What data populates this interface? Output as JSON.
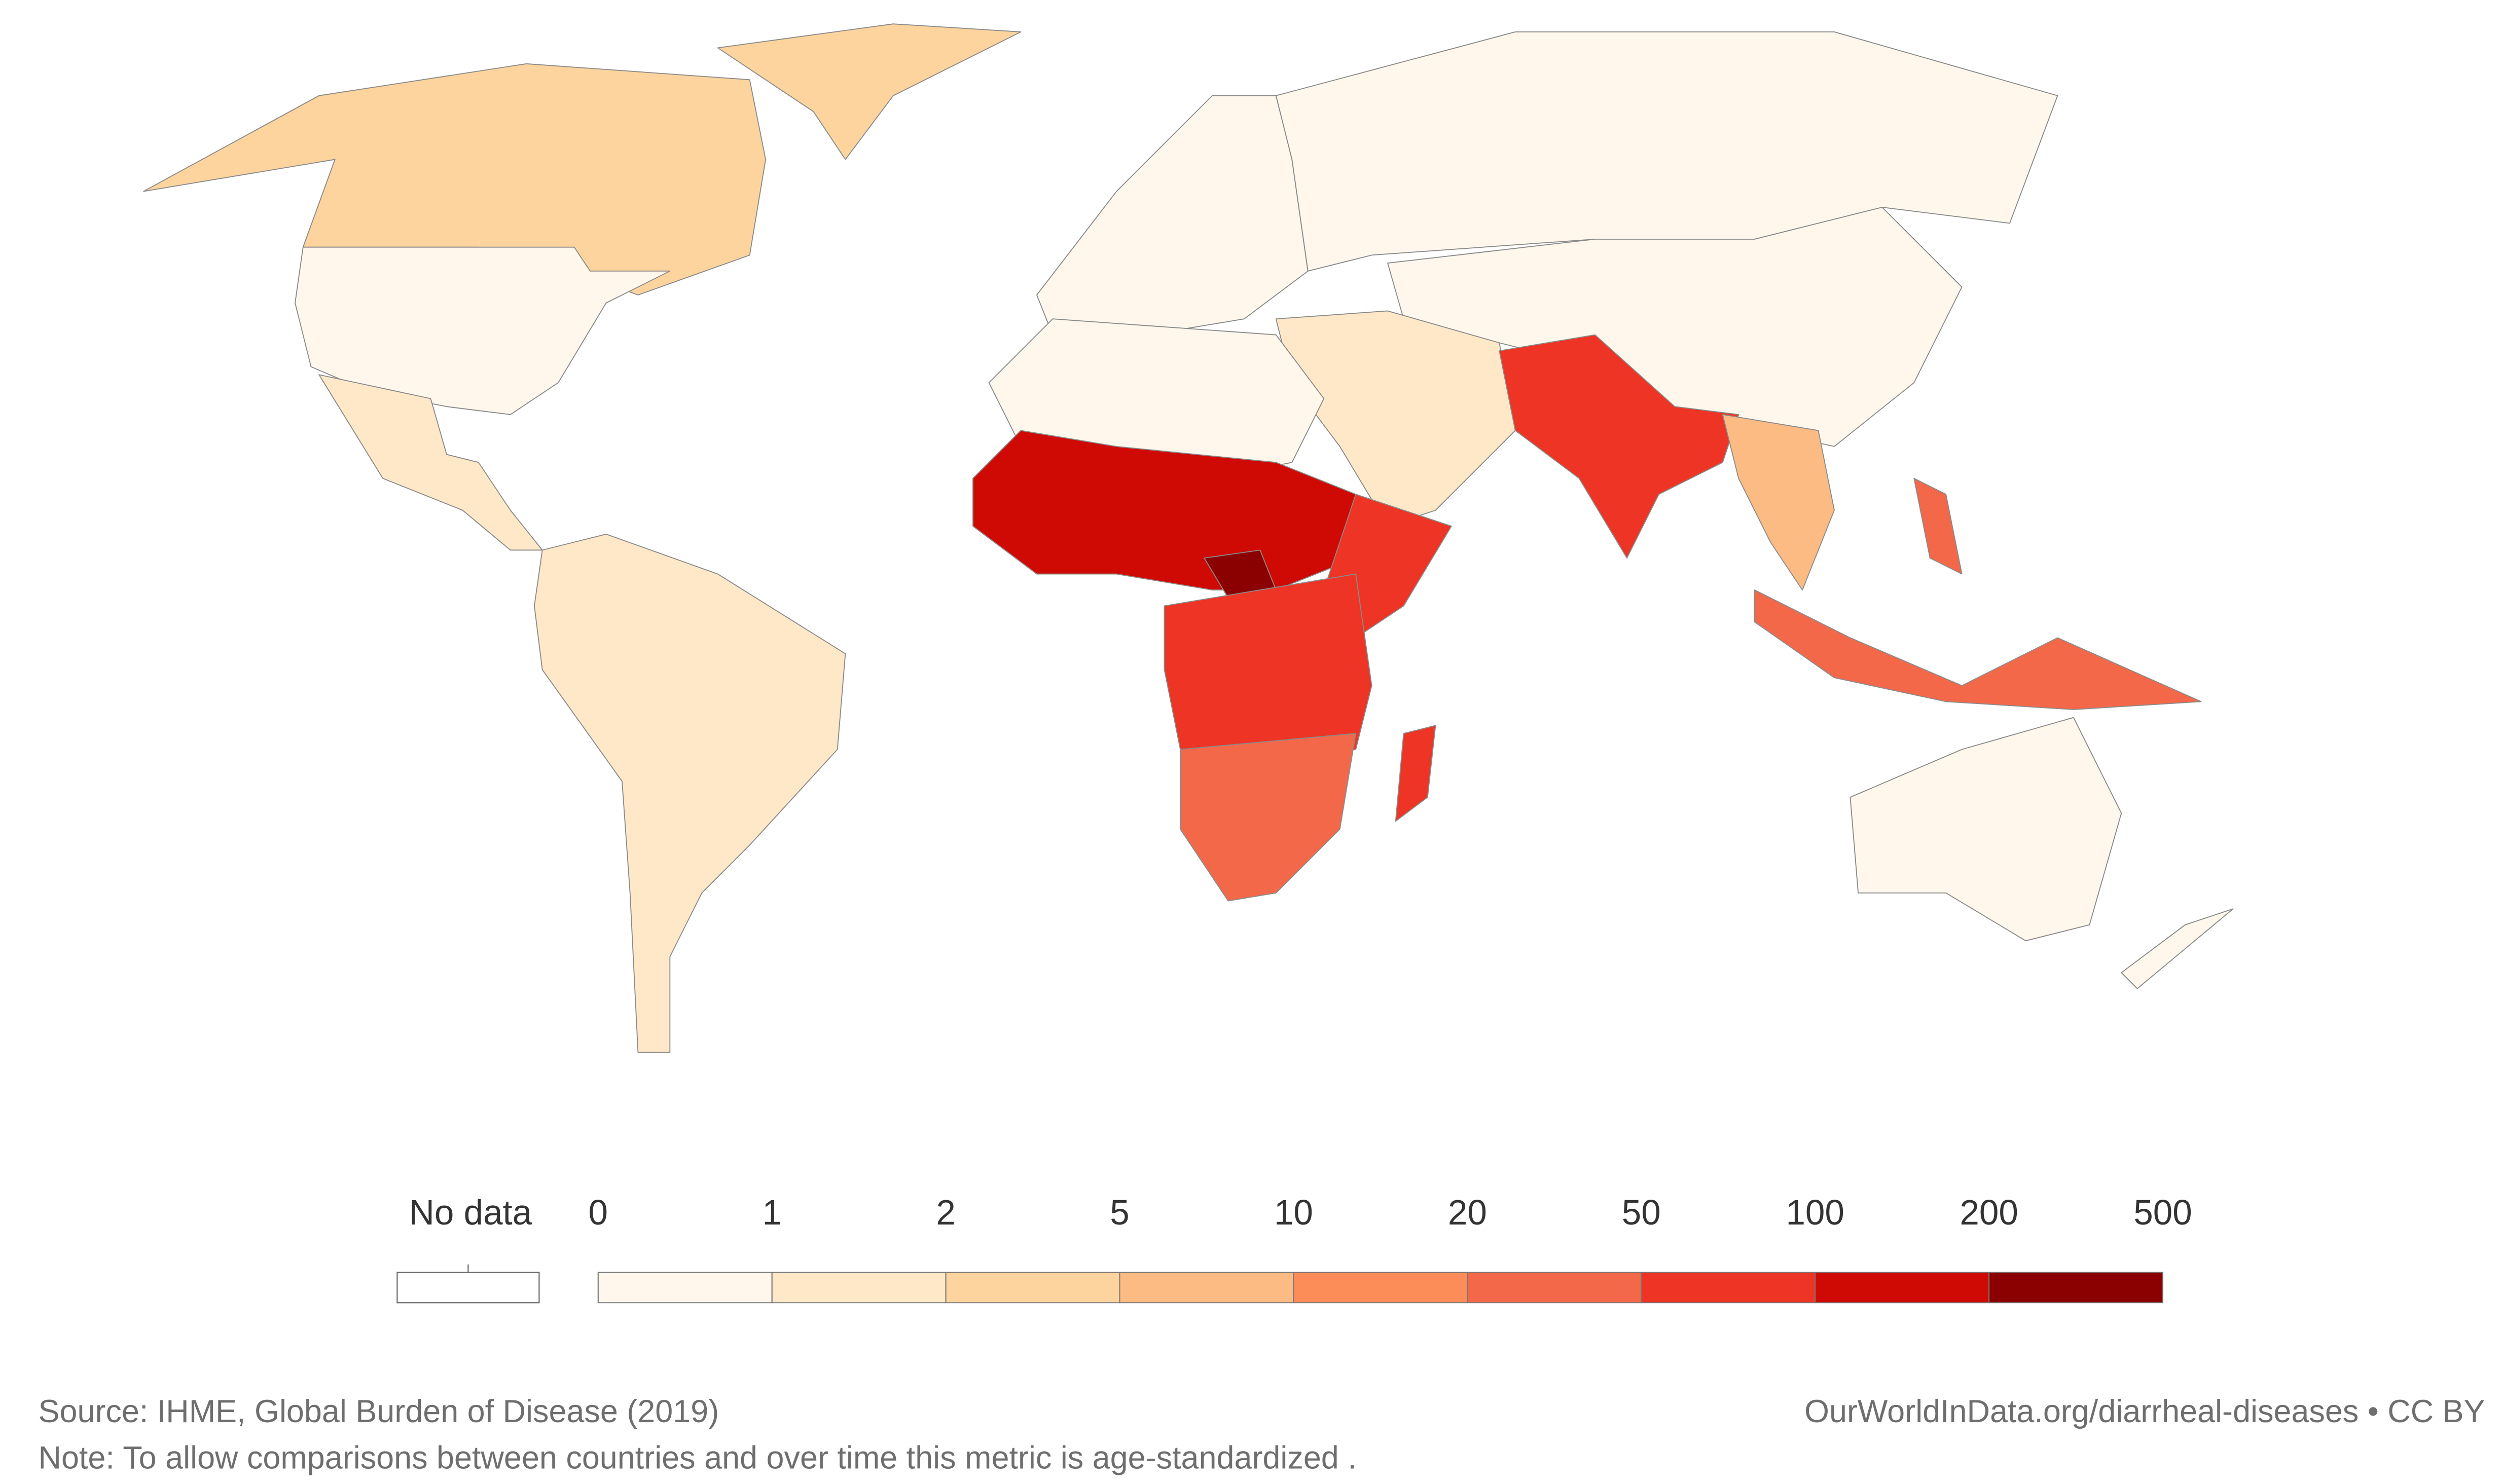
{
  "legend": {
    "no_data": {
      "label": "No data",
      "color": "#ffffff"
    },
    "ticks": [
      0,
      1,
      2,
      5,
      10,
      20,
      50,
      100,
      200,
      500
    ],
    "colors": [
      "#fff7ec",
      "#fee8c8",
      "#fdd49e",
      "#fdbb84",
      "#fc8d59",
      "#f4684a",
      "#ee3424",
      "#cf0a05",
      "#8b0000"
    ]
  },
  "footer": {
    "source": "Source: IHME, Global Burden of Disease (2019)",
    "note": "Note: To allow comparisons between countries and over time this metric is age-standardized .",
    "credit": "OurWorldInData.org/diarrheal-diseases • CC BY"
  }
}
